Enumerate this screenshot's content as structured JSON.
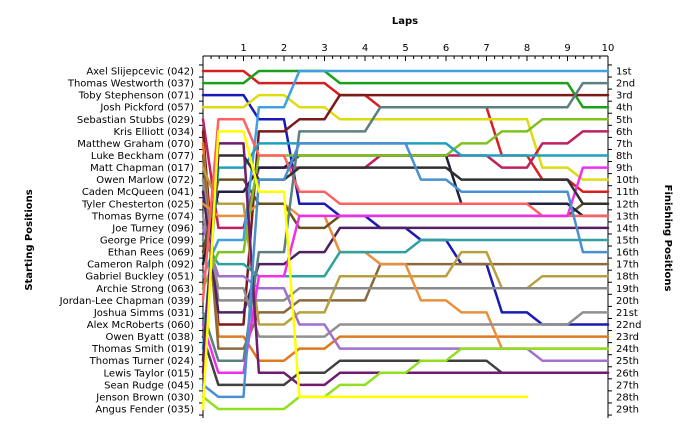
{
  "chart_data": {
    "type": "line",
    "title": "",
    "xlabel": "Laps",
    "ylabel": "Starting Positions",
    "ylabel_right": "Finishing Positions",
    "laps": [
      1,
      2,
      3,
      4,
      5,
      6,
      7,
      8,
      9,
      10
    ],
    "x_range": [
      0,
      10
    ],
    "y_range": [
      1,
      29
    ],
    "y_inverted": true,
    "grid": false,
    "legend": "none",
    "drivers": [
      "Axel Slijepcevic (042)",
      "Thomas Westworth (037)",
      "Toby Stephenson (071)",
      "Josh Pickford (057)",
      "Sebastian Stubbs (029)",
      "Kris Elliott (034)",
      "Matthew Graham (070)",
      "Luke Beckham (077)",
      "Matt Chapman (017)",
      "Owen Marlow (072)",
      "Caden McQueen (041)",
      "Tyler Chesterton (025)",
      "Thomas Byrne (074)",
      "Joe Turney (096)",
      "George Price (099)",
      "Ethan Rees (069)",
      "Cameron Ralph (092)",
      "Gabriel Buckley (051)",
      "Archie Strong (063)",
      "Jordan-Lee Chapman (039)",
      "Joshua Simms (031)",
      "Alex McRoberts (060)",
      "Owen Byatt (038)",
      "Thomas Smith (019)",
      "Thomas Turner (024)",
      "Lewis Taylor (015)",
      "Sean Rudge (045)",
      "Jenson Brown (030)",
      "Angus Fender (035)"
    ],
    "finish_labels": [
      "1st",
      "2nd",
      "3rd",
      "4th",
      "5th",
      "6th",
      "7th",
      "8th",
      "9th",
      "10th",
      "11th",
      "12th",
      "13th",
      "14th",
      "15th",
      "16th",
      "17th",
      "18th",
      "19th",
      "20th",
      "21st",
      "22nd",
      "23rd",
      "24th",
      "25th",
      "26th",
      "27th",
      "28th",
      "29th"
    ],
    "series": [
      {
        "color": "#d62020",
        "positions": [
          1,
          2,
          2,
          3,
          4,
          4,
          4,
          8,
          10,
          11
        ]
      },
      {
        "color": "#1aa01a",
        "positions": [
          2,
          1,
          1,
          2,
          2,
          2,
          2,
          2,
          2,
          4
        ]
      },
      {
        "color": "#1a1ab4",
        "positions": [
          3,
          5,
          12,
          13,
          14,
          15,
          17,
          21,
          22,
          22
        ]
      },
      {
        "color": "#dcdc10",
        "positions": [
          4,
          3,
          4,
          5,
          5,
          5,
          5,
          5,
          9,
          10
        ]
      },
      {
        "color": "#c02060",
        "positions": [
          14,
          9,
          9,
          9,
          8,
          8,
          8,
          9,
          7,
          6
        ]
      },
      {
        "color": "#7a1a1a",
        "positions": [
          22,
          6,
          5,
          3,
          3,
          3,
          3,
          3,
          3,
          3
        ]
      },
      {
        "color": "#e07820",
        "positions": [
          23,
          25,
          24,
          23,
          23,
          23,
          23,
          23,
          23,
          23
        ]
      },
      {
        "color": "#8a6a3a",
        "positions": [
          24,
          21,
          20,
          20,
          17,
          17,
          17,
          17,
          17,
          17
        ]
      },
      {
        "color": "#b8a040",
        "positions": [
          12,
          22,
          21,
          18,
          18,
          18,
          16,
          19,
          18,
          18
        ]
      },
      {
        "color": "#8a8a8a",
        "positions": [
          20,
          20,
          19,
          19,
          19,
          19,
          19,
          19,
          19,
          19
        ]
      },
      {
        "color": "#502060",
        "positions": [
          21,
          17,
          16,
          14,
          14,
          14,
          14,
          14,
          14,
          14
        ]
      },
      {
        "color": "#e89040",
        "positions": [
          13,
          12,
          13,
          16,
          17,
          20,
          21,
          24,
          24,
          24
        ]
      },
      {
        "color": "#909090",
        "positions": [
          19,
          23,
          23,
          22,
          22,
          22,
          22,
          22,
          22,
          21
        ]
      },
      {
        "color": "#a070d0",
        "positions": [
          18,
          19,
          22,
          24,
          24,
          24,
          24,
          24,
          25,
          25
        ]
      },
      {
        "color": "#30a0a0",
        "positions": [
          17,
          18,
          18,
          16,
          16,
          15,
          15,
          15,
          15,
          15
        ]
      },
      {
        "color": "#6a5020",
        "positions": [
          10,
          12,
          14,
          13,
          13,
          13,
          13,
          13,
          13,
          12
        ]
      },
      {
        "color": "#202040",
        "positions": [
          11,
          9,
          8,
          8,
          8,
          8,
          12,
          12,
          12,
          13
        ]
      },
      {
        "color": "#40a0e0",
        "positions": [
          15,
          4,
          1,
          1,
          1,
          1,
          1,
          1,
          1,
          1
        ]
      },
      {
        "color": "#80c020",
        "positions": [
          16,
          8,
          8,
          8,
          8,
          8,
          7,
          6,
          5,
          5
        ]
      },
      {
        "color": "#ff6060",
        "positions": [
          5,
          8,
          11,
          12,
          12,
          12,
          12,
          12,
          13,
          13
        ]
      },
      {
        "color": "#5a8080",
        "positions": [
          25,
          16,
          6,
          6,
          4,
          4,
          4,
          4,
          4,
          2
        ]
      },
      {
        "color": "#ee30ee",
        "positions": [
          26,
          18,
          13,
          13,
          13,
          13,
          13,
          13,
          13,
          9
        ]
      },
      {
        "color": "#404040",
        "positions": [
          27,
          27,
          26,
          25,
          25,
          25,
          25,
          26,
          26,
          26
        ]
      },
      {
        "color": "#20a0c0",
        "positions": [
          9,
          7,
          7,
          7,
          7,
          7,
          8,
          8,
          8,
          8
        ]
      },
      {
        "color": "#303030",
        "positions": [
          8,
          10,
          9,
          9,
          9,
          9,
          10,
          10,
          10,
          12
        ]
      },
      {
        "color": "#701a70",
        "positions": [
          7,
          26,
          27,
          26,
          26,
          26,
          26,
          26,
          26,
          26
        ]
      },
      {
        "color": "#4a90d0",
        "positions": [
          28,
          10,
          7,
          7,
          7,
          10,
          11,
          11,
          11,
          16
        ]
      },
      {
        "color": "#90e020",
        "positions": [
          29,
          29,
          28,
          27,
          26,
          25,
          24,
          24,
          24,
          24
        ]
      },
      {
        "color": "#ffff00",
        "positions": [
          6,
          11,
          28,
          28,
          28,
          28,
          28,
          28,
          null,
          null
        ]
      }
    ]
  }
}
